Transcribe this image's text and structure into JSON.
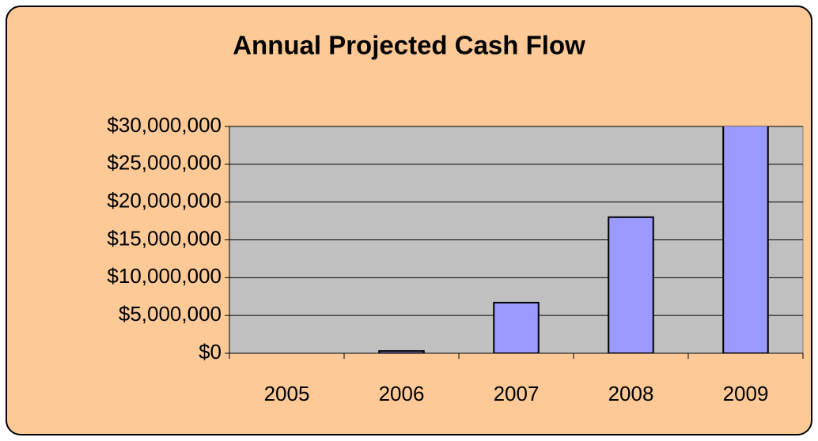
{
  "chart_data": {
    "type": "bar",
    "title": "Annual Projected Cash Flow",
    "categories": [
      "2005",
      "2006",
      "2007",
      "2008",
      "2009"
    ],
    "values": [
      0,
      300000,
      6700000,
      18000000,
      30300000
    ],
    "color": "#9999ff",
    "ylim": [
      0,
      30000000
    ],
    "yticks": [
      {
        "value": 0,
        "label": "$0"
      },
      {
        "value": 5000000,
        "label": "$5,000,000"
      },
      {
        "value": 10000000,
        "label": "$10,000,000"
      },
      {
        "value": 15000000,
        "label": "$15,000,000"
      },
      {
        "value": 20000000,
        "label": "$20,000,000"
      },
      {
        "value": 25000000,
        "label": "$25,000,000"
      },
      {
        "value": 30000000,
        "label": "$30,000,000"
      }
    ],
    "grid": true
  }
}
